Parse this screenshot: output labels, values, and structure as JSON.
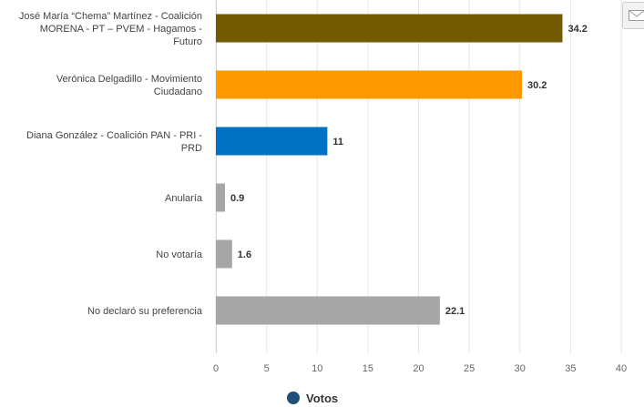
{
  "chart_data": {
    "type": "bar",
    "orientation": "horizontal",
    "categories": [
      [
        "José María “Chema” Martínez - Coalición",
        "MORENA - PT – PVEM - Hagamos -",
        "Futuro"
      ],
      [
        "Verónica Delgadillo - Movimiento",
        "Ciudadano"
      ],
      [
        "Diana González - Coalición PAN - PRI -",
        "PRD"
      ],
      [
        "Anularía"
      ],
      [
        "No votaría"
      ],
      [
        "No declaró su preferencia"
      ]
    ],
    "values": [
      34.2,
      30.2,
      11,
      0.9,
      1.6,
      22.1
    ],
    "value_labels": [
      "34.2",
      "30.2",
      "11",
      "0.9",
      "1.6",
      "22.1"
    ],
    "colors": [
      "#735a00",
      "#ff9900",
      "#0070c0",
      "#a6a6a6",
      "#a6a6a6",
      "#a6a6a6"
    ],
    "xlim": [
      0,
      40
    ],
    "xticks": [
      "0",
      "5",
      "10",
      "15",
      "20",
      "25",
      "30",
      "35",
      "40"
    ],
    "grid": true,
    "legend": {
      "position": "bottom-center",
      "label": "Votos",
      "color": "#1f4e79"
    }
  },
  "export_icon": "envelope-icon"
}
